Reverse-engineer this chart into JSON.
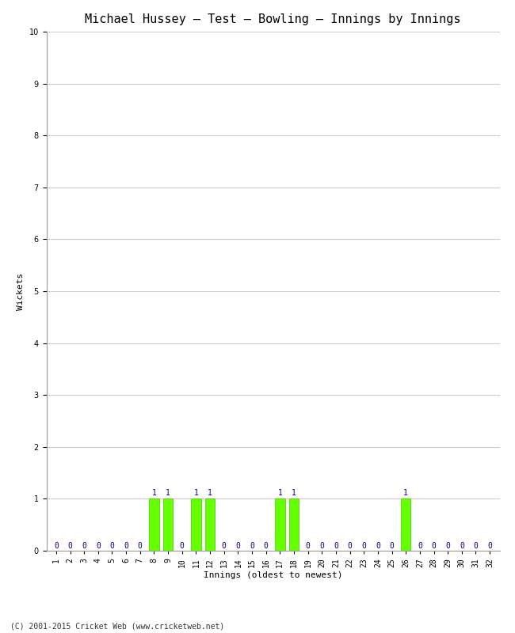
{
  "title": "Michael Hussey – Test – Bowling – Innings by Innings",
  "xlabel": "Innings (oldest to newest)",
  "ylabel": "Wickets",
  "footer": "(C) 2001-2015 Cricket Web (www.cricketweb.net)",
  "ylim": [
    0,
    10
  ],
  "yticks": [
    0,
    1,
    2,
    3,
    4,
    5,
    6,
    7,
    8,
    9,
    10
  ],
  "num_innings": 32,
  "wickets": [
    0,
    0,
    0,
    0,
    0,
    0,
    0,
    1,
    1,
    0,
    1,
    1,
    0,
    0,
    0,
    0,
    1,
    1,
    0,
    0,
    0,
    0,
    0,
    0,
    0,
    1,
    0,
    0,
    0,
    0,
    0,
    0
  ],
  "bar_color": "#66ff00",
  "bar_edge_color": "#44cc00",
  "label_color": "#000080",
  "grid_color": "#cccccc",
  "background_color": "#ffffff",
  "title_fontsize": 11,
  "label_fontsize": 8,
  "tick_fontsize": 7,
  "footer_fontsize": 7,
  "annotation_fontsize": 7
}
